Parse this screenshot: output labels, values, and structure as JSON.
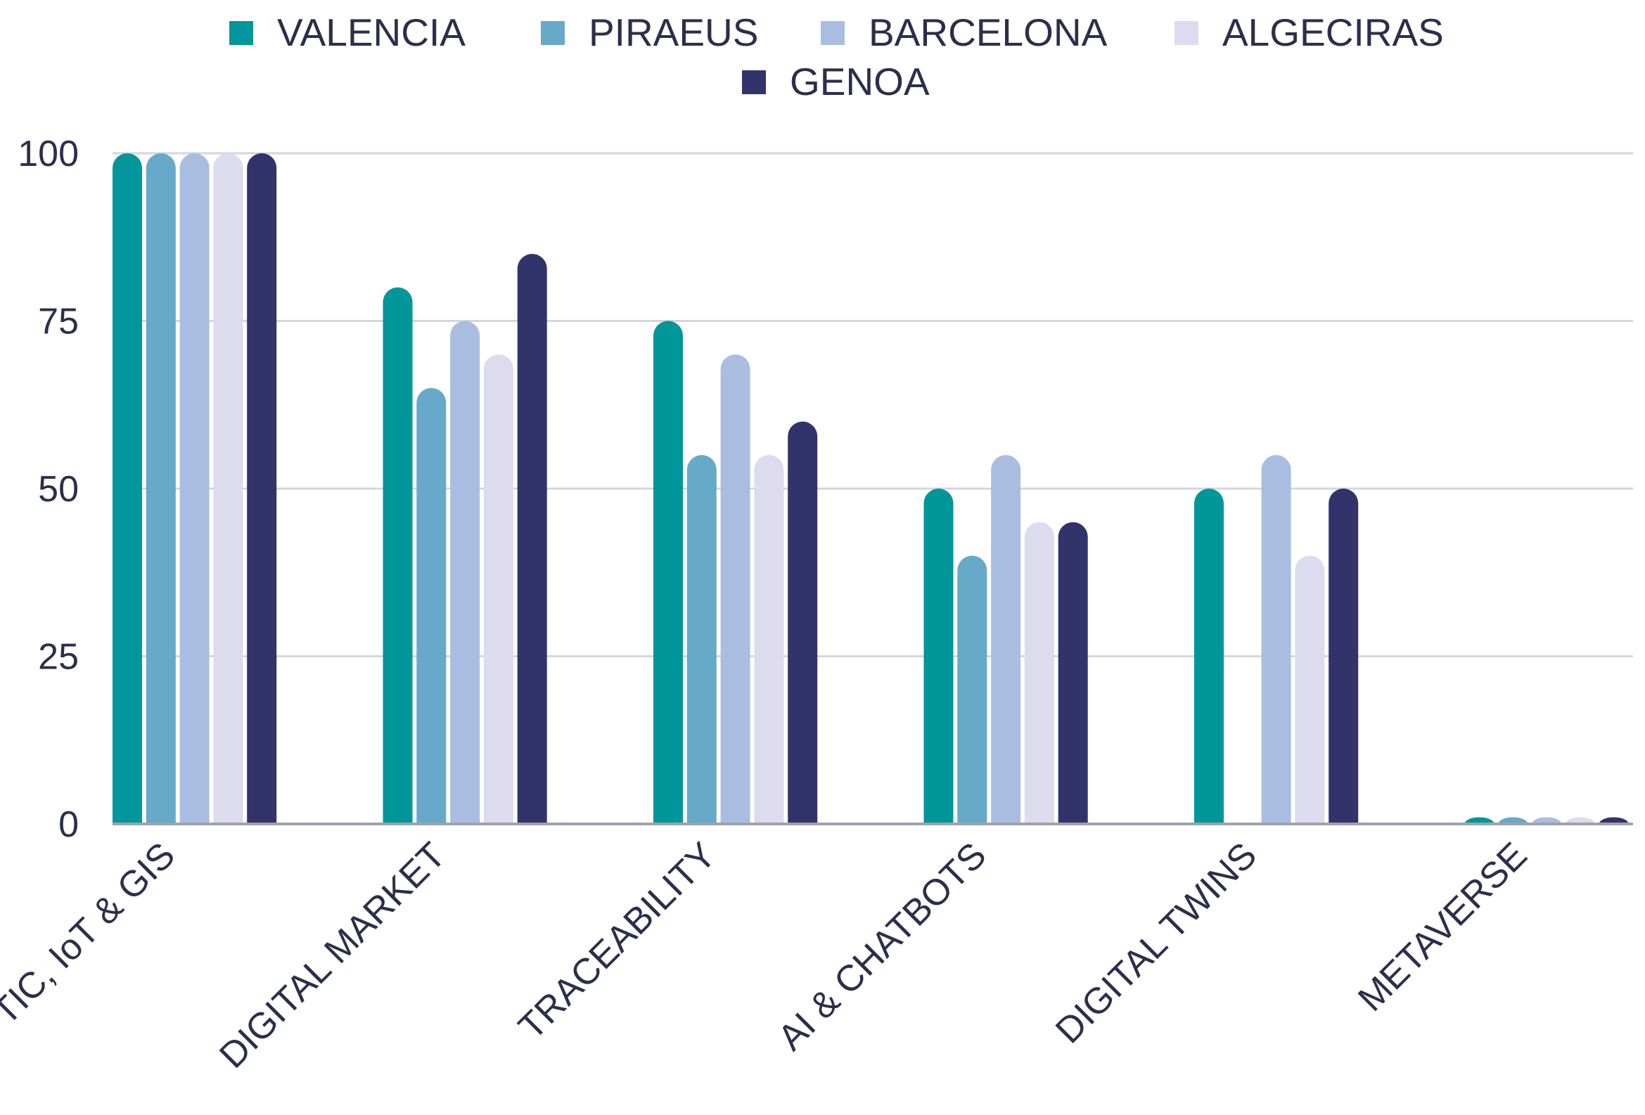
{
  "chart_data": {
    "type": "bar",
    "title": "",
    "xlabel": "",
    "ylabel": "",
    "ylim": [
      0,
      100
    ],
    "yticks": [
      0,
      25,
      50,
      75,
      100
    ],
    "grid": true,
    "legend_position": "top",
    "categories": [
      "TIC, IoT & GIS",
      "DIGITAL MARKET",
      "TRACEABILITY",
      "AI & CHATBOTS",
      "DIGITAL TWINS",
      "METAVERSE"
    ],
    "series": [
      {
        "name": "VALENCIA",
        "color": "#00969a",
        "values": [
          100,
          80,
          75,
          50,
          50,
          1
        ]
      },
      {
        "name": "PIRAEUS",
        "color": "#67a9c8",
        "values": [
          100,
          65,
          55,
          40,
          0,
          1
        ]
      },
      {
        "name": "BARCELONA",
        "color": "#a9bde0",
        "values": [
          100,
          75,
          70,
          55,
          55,
          1
        ]
      },
      {
        "name": "ALGECIRAS",
        "color": "#dddbee",
        "values": [
          100,
          70,
          55,
          45,
          40,
          1
        ]
      },
      {
        "name": "GENOA",
        "color": "#32336b",
        "values": [
          100,
          85,
          60,
          45,
          50,
          1
        ]
      }
    ]
  }
}
